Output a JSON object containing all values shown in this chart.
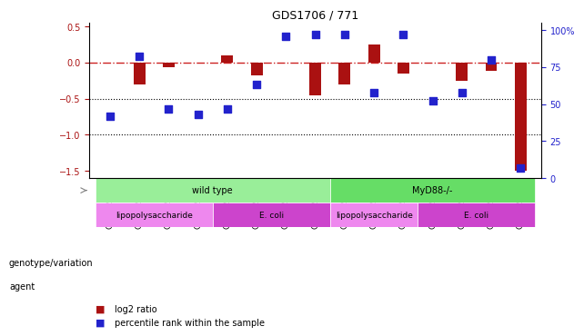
{
  "title": "GDS1706 / 771",
  "samples": [
    "GSM22617",
    "GSM22619",
    "GSM22621",
    "GSM22623",
    "GSM22633",
    "GSM22635",
    "GSM22637",
    "GSM22639",
    "GSM22626",
    "GSM22628",
    "GSM22630",
    "GSM22641",
    "GSM22643",
    "GSM22645",
    "GSM22647"
  ],
  "log2_ratio": [
    0.0,
    -0.3,
    -0.07,
    0.0,
    0.1,
    -0.18,
    0.0,
    -0.45,
    -0.3,
    0.25,
    -0.15,
    0.0,
    -0.25,
    -0.12,
    -1.5
  ],
  "percentile": [
    0.42,
    0.82,
    0.47,
    0.43,
    0.47,
    0.63,
    0.96,
    0.97,
    0.97,
    0.58,
    0.97,
    0.52,
    0.58,
    0.8,
    0.07
  ],
  "bar_color": "#aa1111",
  "dot_color": "#2222cc",
  "dashed_line_color": "#cc2222",
  "ylim_left": [
    -1.6,
    0.55
  ],
  "ylim_right": [
    0,
    105
  ],
  "yticks_left": [
    0.5,
    0,
    -0.5,
    -1.0,
    -1.5
  ],
  "yticks_right": [
    100,
    75,
    50,
    25,
    0
  ],
  "genotype_groups": [
    {
      "label": "wild type",
      "start": 0,
      "end": 7,
      "color": "#99ee99"
    },
    {
      "label": "MyD88-/-",
      "start": 8,
      "end": 14,
      "color": "#66dd66"
    }
  ],
  "agent_groups": [
    {
      "label": "lipopolysaccharide",
      "start": 0,
      "end": 3,
      "color": "#ee88ee"
    },
    {
      "label": "E. coli",
      "start": 4,
      "end": 7,
      "color": "#cc44cc"
    },
    {
      "label": "lipopolysaccharide",
      "start": 8,
      "end": 10,
      "color": "#ee88ee"
    },
    {
      "label": "E. coli",
      "start": 11,
      "end": 14,
      "color": "#cc44cc"
    }
  ],
  "legend_items": [
    {
      "label": "log2 ratio",
      "color": "#aa1111"
    },
    {
      "label": "percentile rank within the sample",
      "color": "#2222cc"
    }
  ]
}
